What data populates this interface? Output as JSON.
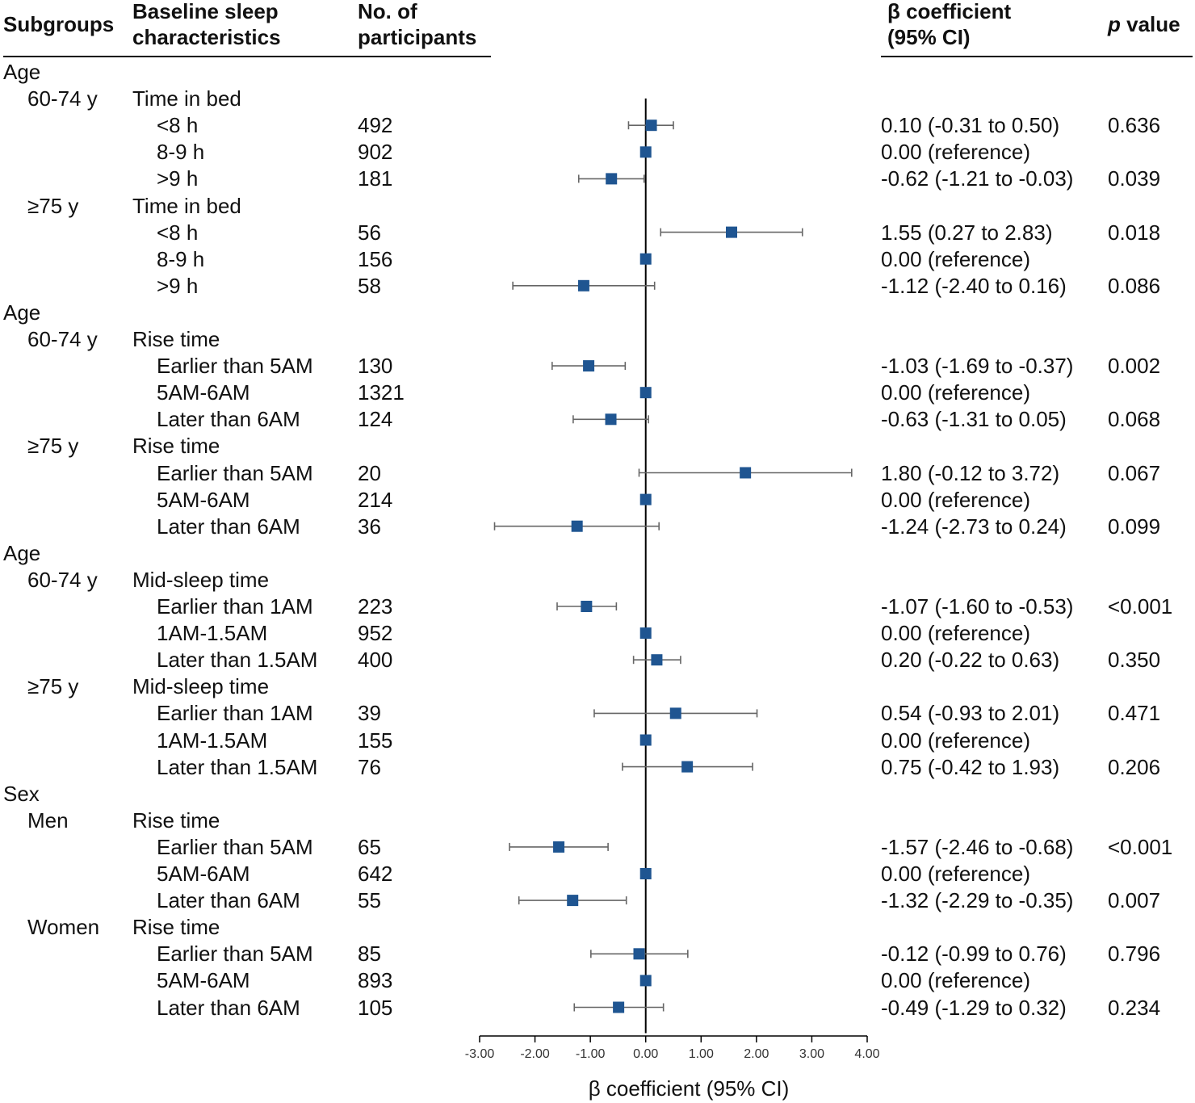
{
  "headers": {
    "subgroups": "Subgroups",
    "baseline_line1": "Baseline sleep",
    "baseline_line2": "characteristics",
    "no_line1": "No. of",
    "no_line2": "participants",
    "beta_line1": "β coefficient",
    "beta_line2": "(95% CI)",
    "p_italic": "p",
    "p_rest": " value"
  },
  "colors": {
    "marker": "#1f5591",
    "ci_line": "#666666",
    "axis": "#000000"
  },
  "chart_data": {
    "type": "forest",
    "xlabel": "β coefficient (95% CI)",
    "xlim": [
      -3,
      4
    ],
    "xticks": [
      -3,
      -2,
      -1,
      0,
      1,
      2,
      3,
      4
    ],
    "xtick_labels": [
      "-3.00",
      "-2.00",
      "-1.00",
      "0.00",
      "1.00",
      "2.00",
      "3.00",
      "4.00"
    ],
    "reference_line": 0,
    "rows": [
      {
        "kind": "group",
        "label": "Age"
      },
      {
        "kind": "sub",
        "label": "60-74 y",
        "char": "Time in bed"
      },
      {
        "kind": "item",
        "label": "<8 h",
        "n": "492",
        "est": 0.1,
        "lo": -0.31,
        "hi": 0.5,
        "ci": "0.10 (-0.31 to 0.50)",
        "p": "0.636"
      },
      {
        "kind": "item",
        "label": "8-9 h",
        "n": "902",
        "est": 0.0,
        "ci": "0.00 (reference)",
        "p": ""
      },
      {
        "kind": "item",
        "label": ">9 h",
        "n": "181",
        "est": -0.62,
        "lo": -1.21,
        "hi": -0.03,
        "ci": "-0.62 (-1.21 to -0.03)",
        "p": "0.039"
      },
      {
        "kind": "sub",
        "label": "≥75 y",
        "char": "Time in bed"
      },
      {
        "kind": "item",
        "label": "<8 h",
        "n": "56",
        "est": 1.55,
        "lo": 0.27,
        "hi": 2.83,
        "ci": "1.55 (0.27 to 2.83)",
        "p": "0.018"
      },
      {
        "kind": "item",
        "label": "8-9 h",
        "n": "156",
        "est": 0.0,
        "ci": "0.00 (reference)",
        "p": ""
      },
      {
        "kind": "item",
        "label": ">9 h",
        "n": "58",
        "est": -1.12,
        "lo": -2.4,
        "hi": 0.16,
        "ci": "-1.12 (-2.40 to 0.16)",
        "p": "0.086"
      },
      {
        "kind": "group",
        "label": "Age"
      },
      {
        "kind": "sub",
        "label": "60-74 y",
        "char": "Rise time"
      },
      {
        "kind": "item",
        "label": "Earlier than 5AM",
        "n": "130",
        "est": -1.03,
        "lo": -1.69,
        "hi": -0.37,
        "ci": "-1.03 (-1.69 to -0.37)",
        "p": "0.002"
      },
      {
        "kind": "item",
        "label": "5AM-6AM",
        "n": "1321",
        "est": 0.0,
        "ci": "0.00 (reference)",
        "p": ""
      },
      {
        "kind": "item",
        "label": "Later than 6AM",
        "n": "124",
        "est": -0.63,
        "lo": -1.31,
        "hi": 0.05,
        "ci": "-0.63 (-1.31 to 0.05)",
        "p": "0.068"
      },
      {
        "kind": "sub",
        "label": "≥75 y",
        "char": "Rise time"
      },
      {
        "kind": "item",
        "label": "Earlier than 5AM",
        "n": "20",
        "est": 1.8,
        "lo": -0.12,
        "hi": 3.72,
        "ci": "1.80 (-0.12 to 3.72)",
        "p": "0.067"
      },
      {
        "kind": "item",
        "label": "5AM-6AM",
        "n": "214",
        "est": 0.0,
        "ci": "0.00 (reference)",
        "p": ""
      },
      {
        "kind": "item",
        "label": "Later than 6AM",
        "n": "36",
        "est": -1.24,
        "lo": -2.73,
        "hi": 0.24,
        "ci": "-1.24 (-2.73 to 0.24)",
        "p": "0.099"
      },
      {
        "kind": "group",
        "label": "Age"
      },
      {
        "kind": "sub",
        "label": "60-74 y",
        "char": "Mid-sleep time"
      },
      {
        "kind": "item",
        "label": "Earlier than 1AM",
        "n": "223",
        "est": -1.07,
        "lo": -1.6,
        "hi": -0.53,
        "ci": "-1.07 (-1.60 to -0.53)",
        "p": "<0.001"
      },
      {
        "kind": "item",
        "label": "1AM-1.5AM",
        "n": "952",
        "est": 0.0,
        "ci": "0.00 (reference)",
        "p": ""
      },
      {
        "kind": "item",
        "label": "Later than 1.5AM",
        "n": "400",
        "est": 0.2,
        "lo": -0.22,
        "hi": 0.63,
        "ci": "0.20 (-0.22 to 0.63)",
        "p": "0.350"
      },
      {
        "kind": "sub",
        "label": "≥75 y",
        "char": "Mid-sleep time"
      },
      {
        "kind": "item",
        "label": "Earlier than 1AM",
        "n": "39",
        "est": 0.54,
        "lo": -0.93,
        "hi": 2.01,
        "ci": "0.54 (-0.93 to 2.01)",
        "p": "0.471"
      },
      {
        "kind": "item",
        "label": "1AM-1.5AM",
        "n": "155",
        "est": 0.0,
        "ci": "0.00 (reference)",
        "p": ""
      },
      {
        "kind": "item",
        "label": "Later than 1.5AM",
        "n": "76",
        "est": 0.75,
        "lo": -0.42,
        "hi": 1.93,
        "ci": "0.75 (-0.42 to 1.93)",
        "p": "0.206"
      },
      {
        "kind": "group",
        "label": "Sex"
      },
      {
        "kind": "sub",
        "label": "Men",
        "char": "Rise time"
      },
      {
        "kind": "item",
        "label": "Earlier than 5AM",
        "n": "65",
        "est": -1.57,
        "lo": -2.46,
        "hi": -0.68,
        "ci": "-1.57 (-2.46 to -0.68)",
        "p": "<0.001"
      },
      {
        "kind": "item",
        "label": "5AM-6AM",
        "n": "642",
        "est": 0.0,
        "ci": "0.00 (reference)",
        "p": ""
      },
      {
        "kind": "item",
        "label": "Later than 6AM",
        "n": "55",
        "est": -1.32,
        "lo": -2.29,
        "hi": -0.35,
        "ci": "-1.32 (-2.29 to -0.35)",
        "p": "0.007"
      },
      {
        "kind": "sub",
        "label": "Women",
        "char": "Rise time"
      },
      {
        "kind": "item",
        "label": "Earlier than 5AM",
        "n": "85",
        "est": -0.12,
        "lo": -0.99,
        "hi": 0.76,
        "ci": "-0.12 (-0.99 to 0.76)",
        "p": "0.796"
      },
      {
        "kind": "item",
        "label": "5AM-6AM",
        "n": "893",
        "est": 0.0,
        "ci": "0.00 (reference)",
        "p": ""
      },
      {
        "kind": "item",
        "label": "Later than 6AM",
        "n": "105",
        "est": -0.49,
        "lo": -1.29,
        "hi": 0.32,
        "ci": "-0.49 (-1.29 to 0.32)",
        "p": "0.234"
      }
    ]
  }
}
